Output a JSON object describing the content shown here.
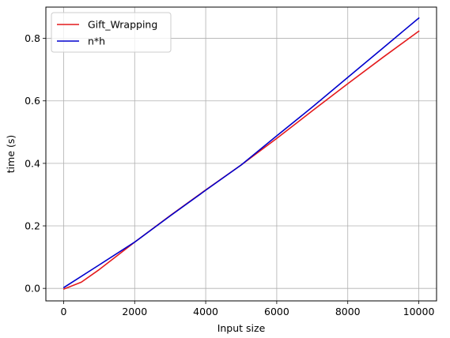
{
  "chart_data": {
    "type": "line",
    "xlabel": "Input size",
    "ylabel": "time (s)",
    "xlim": [
      -500,
      10500
    ],
    "ylim": [
      -0.04,
      0.9
    ],
    "xticks": [
      0,
      2000,
      4000,
      6000,
      8000,
      10000
    ],
    "xtick_labels": [
      "0",
      "2000",
      "4000",
      "6000",
      "8000",
      "10000"
    ],
    "yticks": [
      0.0,
      0.2,
      0.4,
      0.6,
      0.8
    ],
    "ytick_labels": [
      "0.0",
      "0.2",
      "0.4",
      "0.6",
      "0.8"
    ],
    "grid": true,
    "legend": "upper-left",
    "series": [
      {
        "name": "Gift_Wrapping",
        "color": "#e41a1c",
        "x": [
          10,
          500,
          1000,
          2000,
          3000,
          4000,
          5000,
          6000,
          7000,
          8000,
          9000,
          10000
        ],
        "y": [
          -0.002,
          0.02,
          0.06,
          0.148,
          0.233,
          0.315,
          0.395,
          0.48,
          0.568,
          0.655,
          0.74,
          0.823
        ]
      },
      {
        "name": "n*h",
        "color": "#0000cd",
        "x": [
          10,
          1000,
          2000,
          3000,
          4000,
          5000,
          6000,
          7000,
          8000,
          9000,
          10000
        ],
        "y": [
          0.003,
          0.075,
          0.148,
          0.232,
          0.314,
          0.395,
          0.488,
          0.58,
          0.675,
          0.77,
          0.865
        ]
      }
    ]
  }
}
